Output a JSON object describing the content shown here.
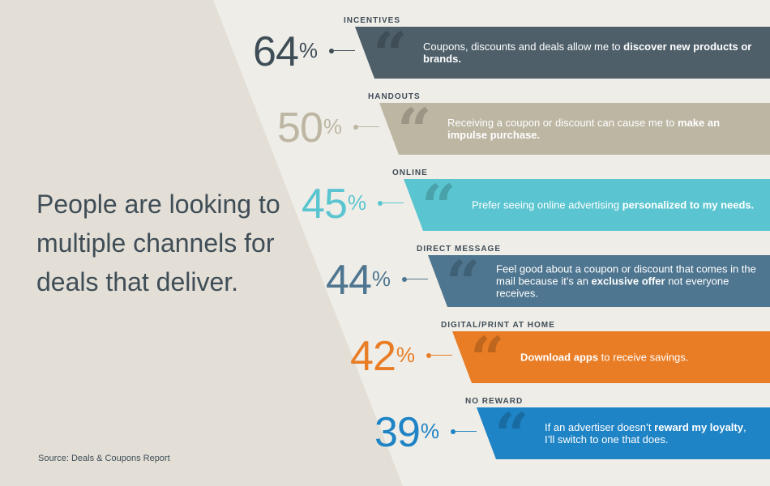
{
  "headline": "People are looking to multiple channels for deals that deliver.",
  "source": "Source: Deals & Coupons Report",
  "chart_data": {
    "type": "bar",
    "unit": "%",
    "categories": [
      "INCENTIVES",
      "HANDOUTS",
      "ONLINE",
      "DIRECT MESSAGE",
      "DIGITAL/PRINT AT HOME",
      "NO REWARD"
    ],
    "values": [
      64,
      50,
      45,
      44,
      42,
      39
    ],
    "percent_symbol": "%",
    "items": [
      {
        "category": "INCENTIVES",
        "value": 64,
        "value_label": "64",
        "color": "#4e5f6a",
        "pct_color": "#3f4d57",
        "text_before": "Coupons, discounts and deals allow me to ",
        "text_bold": "discover new products or brands.",
        "text_after": ""
      },
      {
        "category": "HANDOUTS",
        "value": 50,
        "value_label": "50",
        "color": "#bdb6a3",
        "pct_color": "#bdb6a3",
        "text_before": "Receiving a coupon or discount can cause me to ",
        "text_bold": "make an impulse purchase.",
        "text_after": ""
      },
      {
        "category": "ONLINE",
        "value": 45,
        "value_label": "45",
        "color": "#5ac5d0",
        "pct_color": "#5ac5d0",
        "text_before": "Prefer seeing online advertising ",
        "text_bold": "personalized to my needs.",
        "text_after": ""
      },
      {
        "category": "DIRECT MESSAGE",
        "value": 44,
        "value_label": "44",
        "color": "#4f7690",
        "pct_color": "#4f7690",
        "text_before": "Feel good about a coupon or discount that comes in the mail because it’s an ",
        "text_bold": "exclusive offer",
        "text_after": " not everyone receives."
      },
      {
        "category": "DIGITAL/PRINT AT HOME",
        "value": 42,
        "value_label": "42",
        "color": "#e97d25",
        "pct_color": "#e97d25",
        "text_before": "",
        "text_bold": "Download apps",
        "text_after": " to receive savings."
      },
      {
        "category": "NO REWARD",
        "value": 39,
        "value_label": "39",
        "color": "#1f84c6",
        "pct_color": "#1f84c6",
        "text_before": "If an advertiser doesn’t ",
        "text_bold": "reward my loyalty",
        "text_after": ", I’ll switch to one that does."
      }
    ]
  },
  "colors": {
    "background": "#efede8",
    "wedge": "#e3dfd6",
    "text_dark": "#3f4d57"
  },
  "icons": {
    "quote": "quote-mark-icon"
  }
}
